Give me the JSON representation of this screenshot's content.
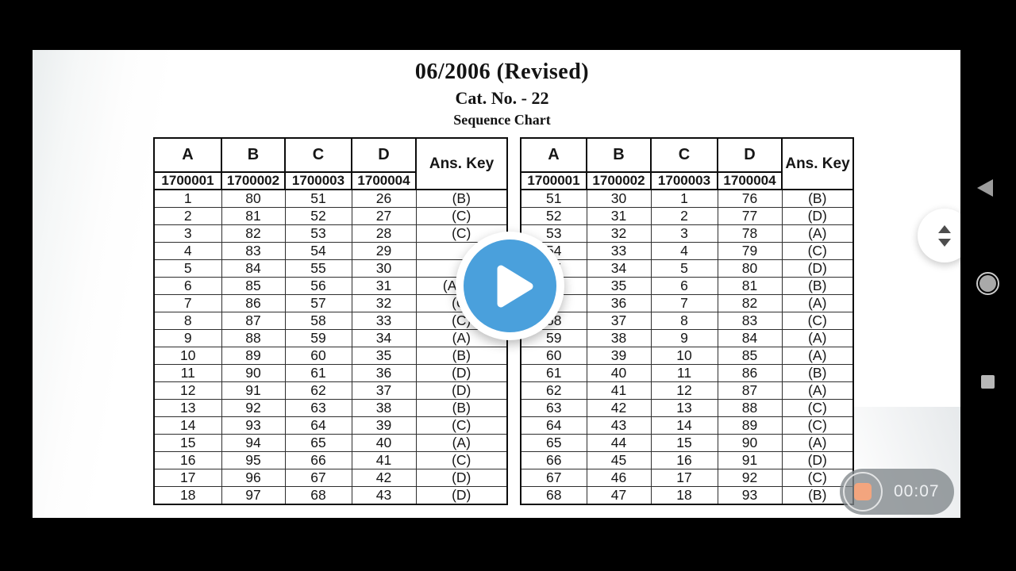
{
  "document": {
    "title": "06/2006 (Revised)",
    "cat_no": "Cat. No. - 22",
    "chart_label": "Sequence Chart"
  },
  "tables": [
    {
      "headers": [
        "A",
        "B",
        "C",
        "D"
      ],
      "ans_header": "Ans. Key",
      "codes": [
        "1700001",
        "1700002",
        "1700003",
        "1700004"
      ],
      "rows": [
        [
          "1",
          "80",
          "51",
          "26",
          "(B)"
        ],
        [
          "2",
          "81",
          "52",
          "27",
          "(C)"
        ],
        [
          "3",
          "82",
          "53",
          "28",
          "(C)"
        ],
        [
          "4",
          "83",
          "54",
          "29",
          ""
        ],
        [
          "5",
          "84",
          "55",
          "30",
          ""
        ],
        [
          "6",
          "85",
          "56",
          "31",
          "(A)(B)"
        ],
        [
          "7",
          "86",
          "57",
          "32",
          "(C)"
        ],
        [
          "8",
          "87",
          "58",
          "33",
          "(C)"
        ],
        [
          "9",
          "88",
          "59",
          "34",
          "(A)"
        ],
        [
          "10",
          "89",
          "60",
          "35",
          "(B)"
        ],
        [
          "11",
          "90",
          "61",
          "36",
          "(D)"
        ],
        [
          "12",
          "91",
          "62",
          "37",
          "(D)"
        ],
        [
          "13",
          "92",
          "63",
          "38",
          "(B)"
        ],
        [
          "14",
          "93",
          "64",
          "39",
          "(C)"
        ],
        [
          "15",
          "94",
          "65",
          "40",
          "(A)"
        ],
        [
          "16",
          "95",
          "66",
          "41",
          "(C)"
        ],
        [
          "17",
          "96",
          "67",
          "42",
          "(D)"
        ],
        [
          "18",
          "97",
          "68",
          "43",
          "(D)"
        ]
      ]
    },
    {
      "headers": [
        "A",
        "B",
        "C",
        "D"
      ],
      "ans_header": "Ans. Key",
      "codes": [
        "1700001",
        "1700002",
        "1700003",
        "1700004"
      ],
      "rows": [
        [
          "51",
          "30",
          "1",
          "76",
          "(B)"
        ],
        [
          "52",
          "31",
          "2",
          "77",
          "(D)"
        ],
        [
          "53",
          "32",
          "3",
          "78",
          "(A)"
        ],
        [
          "54",
          "33",
          "4",
          "79",
          "(C)"
        ],
        [
          "55",
          "34",
          "5",
          "80",
          "(D)"
        ],
        [
          "56",
          "35",
          "6",
          "81",
          "(B)"
        ],
        [
          "57",
          "36",
          "7",
          "82",
          "(A)"
        ],
        [
          "58",
          "37",
          "8",
          "83",
          "(C)"
        ],
        [
          "59",
          "38",
          "9",
          "84",
          "(A)"
        ],
        [
          "60",
          "39",
          "10",
          "85",
          "(A)"
        ],
        [
          "61",
          "40",
          "11",
          "86",
          "(B)"
        ],
        [
          "62",
          "41",
          "12",
          "87",
          "(A)"
        ],
        [
          "63",
          "42",
          "13",
          "88",
          "(C)"
        ],
        [
          "64",
          "43",
          "14",
          "89",
          "(C)"
        ],
        [
          "65",
          "44",
          "15",
          "90",
          "(A)"
        ],
        [
          "66",
          "45",
          "16",
          "91",
          "(D)"
        ],
        [
          "67",
          "46",
          "17",
          "92",
          "(C)"
        ],
        [
          "68",
          "47",
          "18",
          "93",
          "(B)"
        ]
      ]
    }
  ],
  "player": {
    "play_icon": "play-icon",
    "accent": "#4aa0dc"
  },
  "recorder": {
    "time": "00:07",
    "stop_icon": "stop-icon",
    "accent": "#f3a57e"
  },
  "nav": {
    "back_icon": "back-icon",
    "home_icon": "home-icon",
    "recents_icon": "recents-icon"
  },
  "scroll_widget": {
    "up_icon": "chevron-up-icon",
    "down_icon": "chevron-down-icon"
  }
}
